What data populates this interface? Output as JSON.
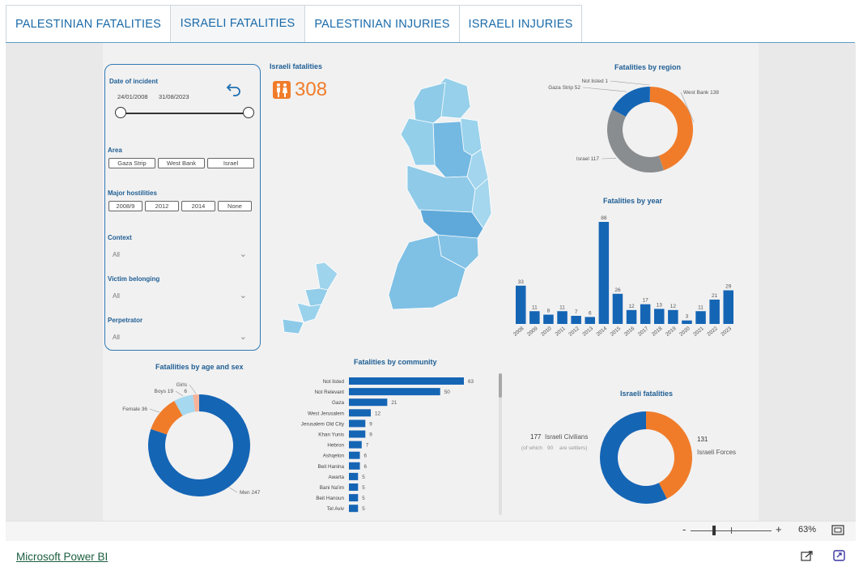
{
  "tabs": [
    "PALESTINIAN FATALITIES",
    "ISRAELI FATALITIES",
    "PALESTINIAN INJURIES",
    "ISRAELI INJURIES"
  ],
  "filters": {
    "date_label": "Date of incident",
    "date_start": "24/01/2008",
    "date_end": "31/08/2023",
    "area_label": "Area",
    "area_options": [
      "Gaza Strip",
      "West Bank",
      "Israel"
    ],
    "hostilities_label": "Major hostilities",
    "hostilities_options": [
      "2008/9",
      "2012",
      "2014",
      "None"
    ],
    "context_label": "Context",
    "context_value": "All",
    "victim_label": "Victim belonging",
    "victim_value": "All",
    "perp_label": "Perpetrator",
    "perp_value": "All"
  },
  "kpi": {
    "title": "Israeli fatalities",
    "value": "308",
    "color": "#f07c2a"
  },
  "region_chart": {
    "title": "Fatalities by region"
  },
  "year_chart": {
    "title": "Fatalities by year"
  },
  "age_chart": {
    "title": "Fatallities by age and sex"
  },
  "community_chart": {
    "title": "Fatalities by community"
  },
  "israeli_chart": {
    "title": "Israeli fatalities",
    "civ_value": "177",
    "civ_label": "Israeli Civilians",
    "settler_prefix": "(of which",
    "settler_value": "90",
    "settler_suffix": "are settlers)",
    "forces_value": "131",
    "forces_label": "Israeli Forces"
  },
  "zoom": {
    "minus": "-",
    "plus": "+",
    "level": "63%"
  },
  "footer": {
    "link": "Microsoft Power BI"
  },
  "chart_data": [
    {
      "type": "pie",
      "title": "Fatalities by region",
      "categories": [
        "West Bank",
        "Israel",
        "Gaza Strip",
        "Not listed"
      ],
      "values": [
        138,
        117,
        52,
        1
      ],
      "colors": [
        "#f07c2a",
        "#8a8d8f",
        "#1565b5",
        "#2d6fb8"
      ]
    },
    {
      "type": "bar",
      "title": "Fatalities by year",
      "categories": [
        "2008",
        "2009",
        "2010",
        "2011",
        "2012",
        "2013",
        "2014",
        "2015",
        "2016",
        "2017",
        "2018",
        "2019",
        "2020",
        "2021",
        "2022",
        "2023"
      ],
      "values": [
        33,
        11,
        8,
        11,
        7,
        6,
        88,
        26,
        12,
        17,
        13,
        12,
        3,
        11,
        21,
        29
      ],
      "color": "#1565b5"
    },
    {
      "type": "pie",
      "title": "Fatallities by age and sex",
      "categories": [
        "Men",
        "Female",
        "Boys",
        "Girls"
      ],
      "values": [
        247,
        36,
        19,
        6
      ],
      "colors": [
        "#1565b5",
        "#f07c2a",
        "#a6d8ef",
        "#f7b49a"
      ]
    },
    {
      "type": "bar",
      "title": "Fatalities by community",
      "categories": [
        "Not listed",
        "Not Relevant",
        "Gaza",
        "West Jerusalem",
        "Jerusalem Old City",
        "Khan Yunis",
        "Hebron",
        "Ashqelon",
        "Beit Hanina",
        "Awarta",
        "Bani Na'im",
        "Beit Hanoun",
        "Tel Aviv"
      ],
      "values": [
        63,
        50,
        21,
        12,
        9,
        9,
        7,
        6,
        6,
        5,
        5,
        5,
        5
      ],
      "color": "#1565b5"
    },
    {
      "type": "pie",
      "title": "Israeli fatalities",
      "categories": [
        "Israeli Civilians",
        "Israeli Forces"
      ],
      "values": [
        177,
        131
      ],
      "colors": [
        "#1565b5",
        "#f07c2a"
      ]
    }
  ]
}
